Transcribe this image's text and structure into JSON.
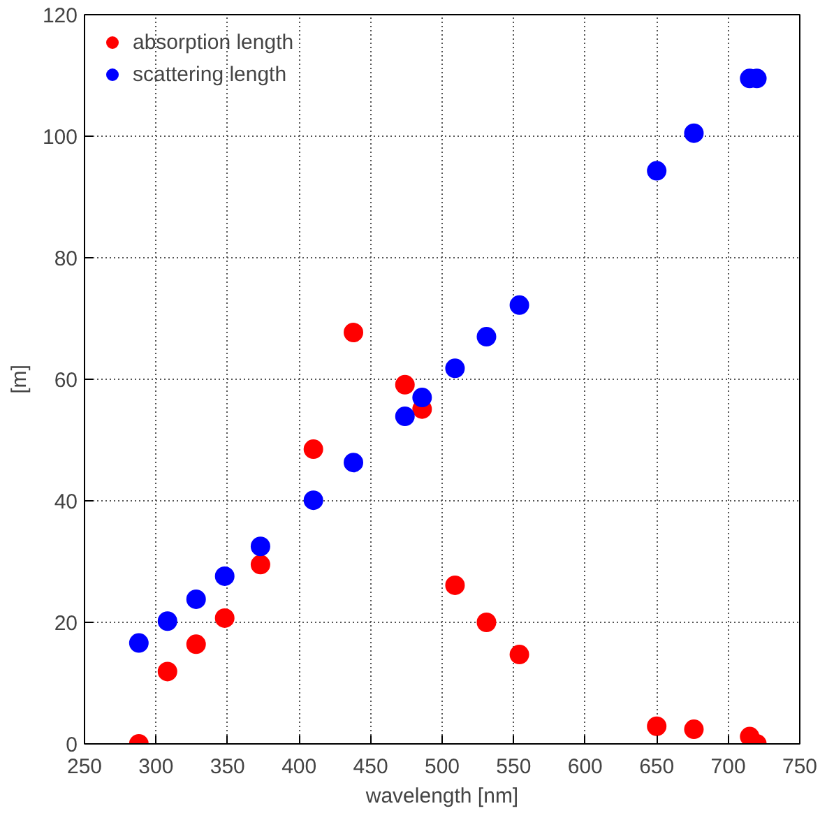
{
  "chart_data": {
    "type": "scatter",
    "xlabel": "wavelength [nm]",
    "ylabel": "[m]",
    "xlim": [
      250,
      750
    ],
    "xticks": [
      250,
      300,
      350,
      400,
      450,
      500,
      550,
      600,
      650,
      700,
      750
    ],
    "ylim": [
      0,
      120
    ],
    "yticks": [
      0,
      20,
      40,
      60,
      80,
      100,
      120
    ],
    "grid": true,
    "legend": "top left",
    "marker": "circle",
    "series": [
      {
        "name": "absorption length",
        "color": "#ff0000",
        "x": [
          288,
          308,
          328,
          348,
          373,
          410,
          438,
          474,
          486,
          509,
          531,
          554,
          650,
          676,
          715,
          720
        ],
        "values": [
          0,
          11.9,
          16.4,
          20.7,
          29.5,
          48.5,
          67.7,
          59.1,
          55.1,
          26.1,
          20.0,
          14.7,
          2.9,
          2.4,
          1.2,
          0
        ]
      },
      {
        "name": "scattering length",
        "color": "#0000ff",
        "x": [
          288,
          308,
          328,
          348,
          373,
          410,
          438,
          474,
          486,
          509,
          531,
          554,
          650,
          676,
          715,
          720
        ],
        "values": [
          16.6,
          20.2,
          23.8,
          27.6,
          32.5,
          40.1,
          46.3,
          53.9,
          57.0,
          61.8,
          67.0,
          72.2,
          94.3,
          100.5,
          109.5,
          109.5
        ]
      }
    ]
  }
}
